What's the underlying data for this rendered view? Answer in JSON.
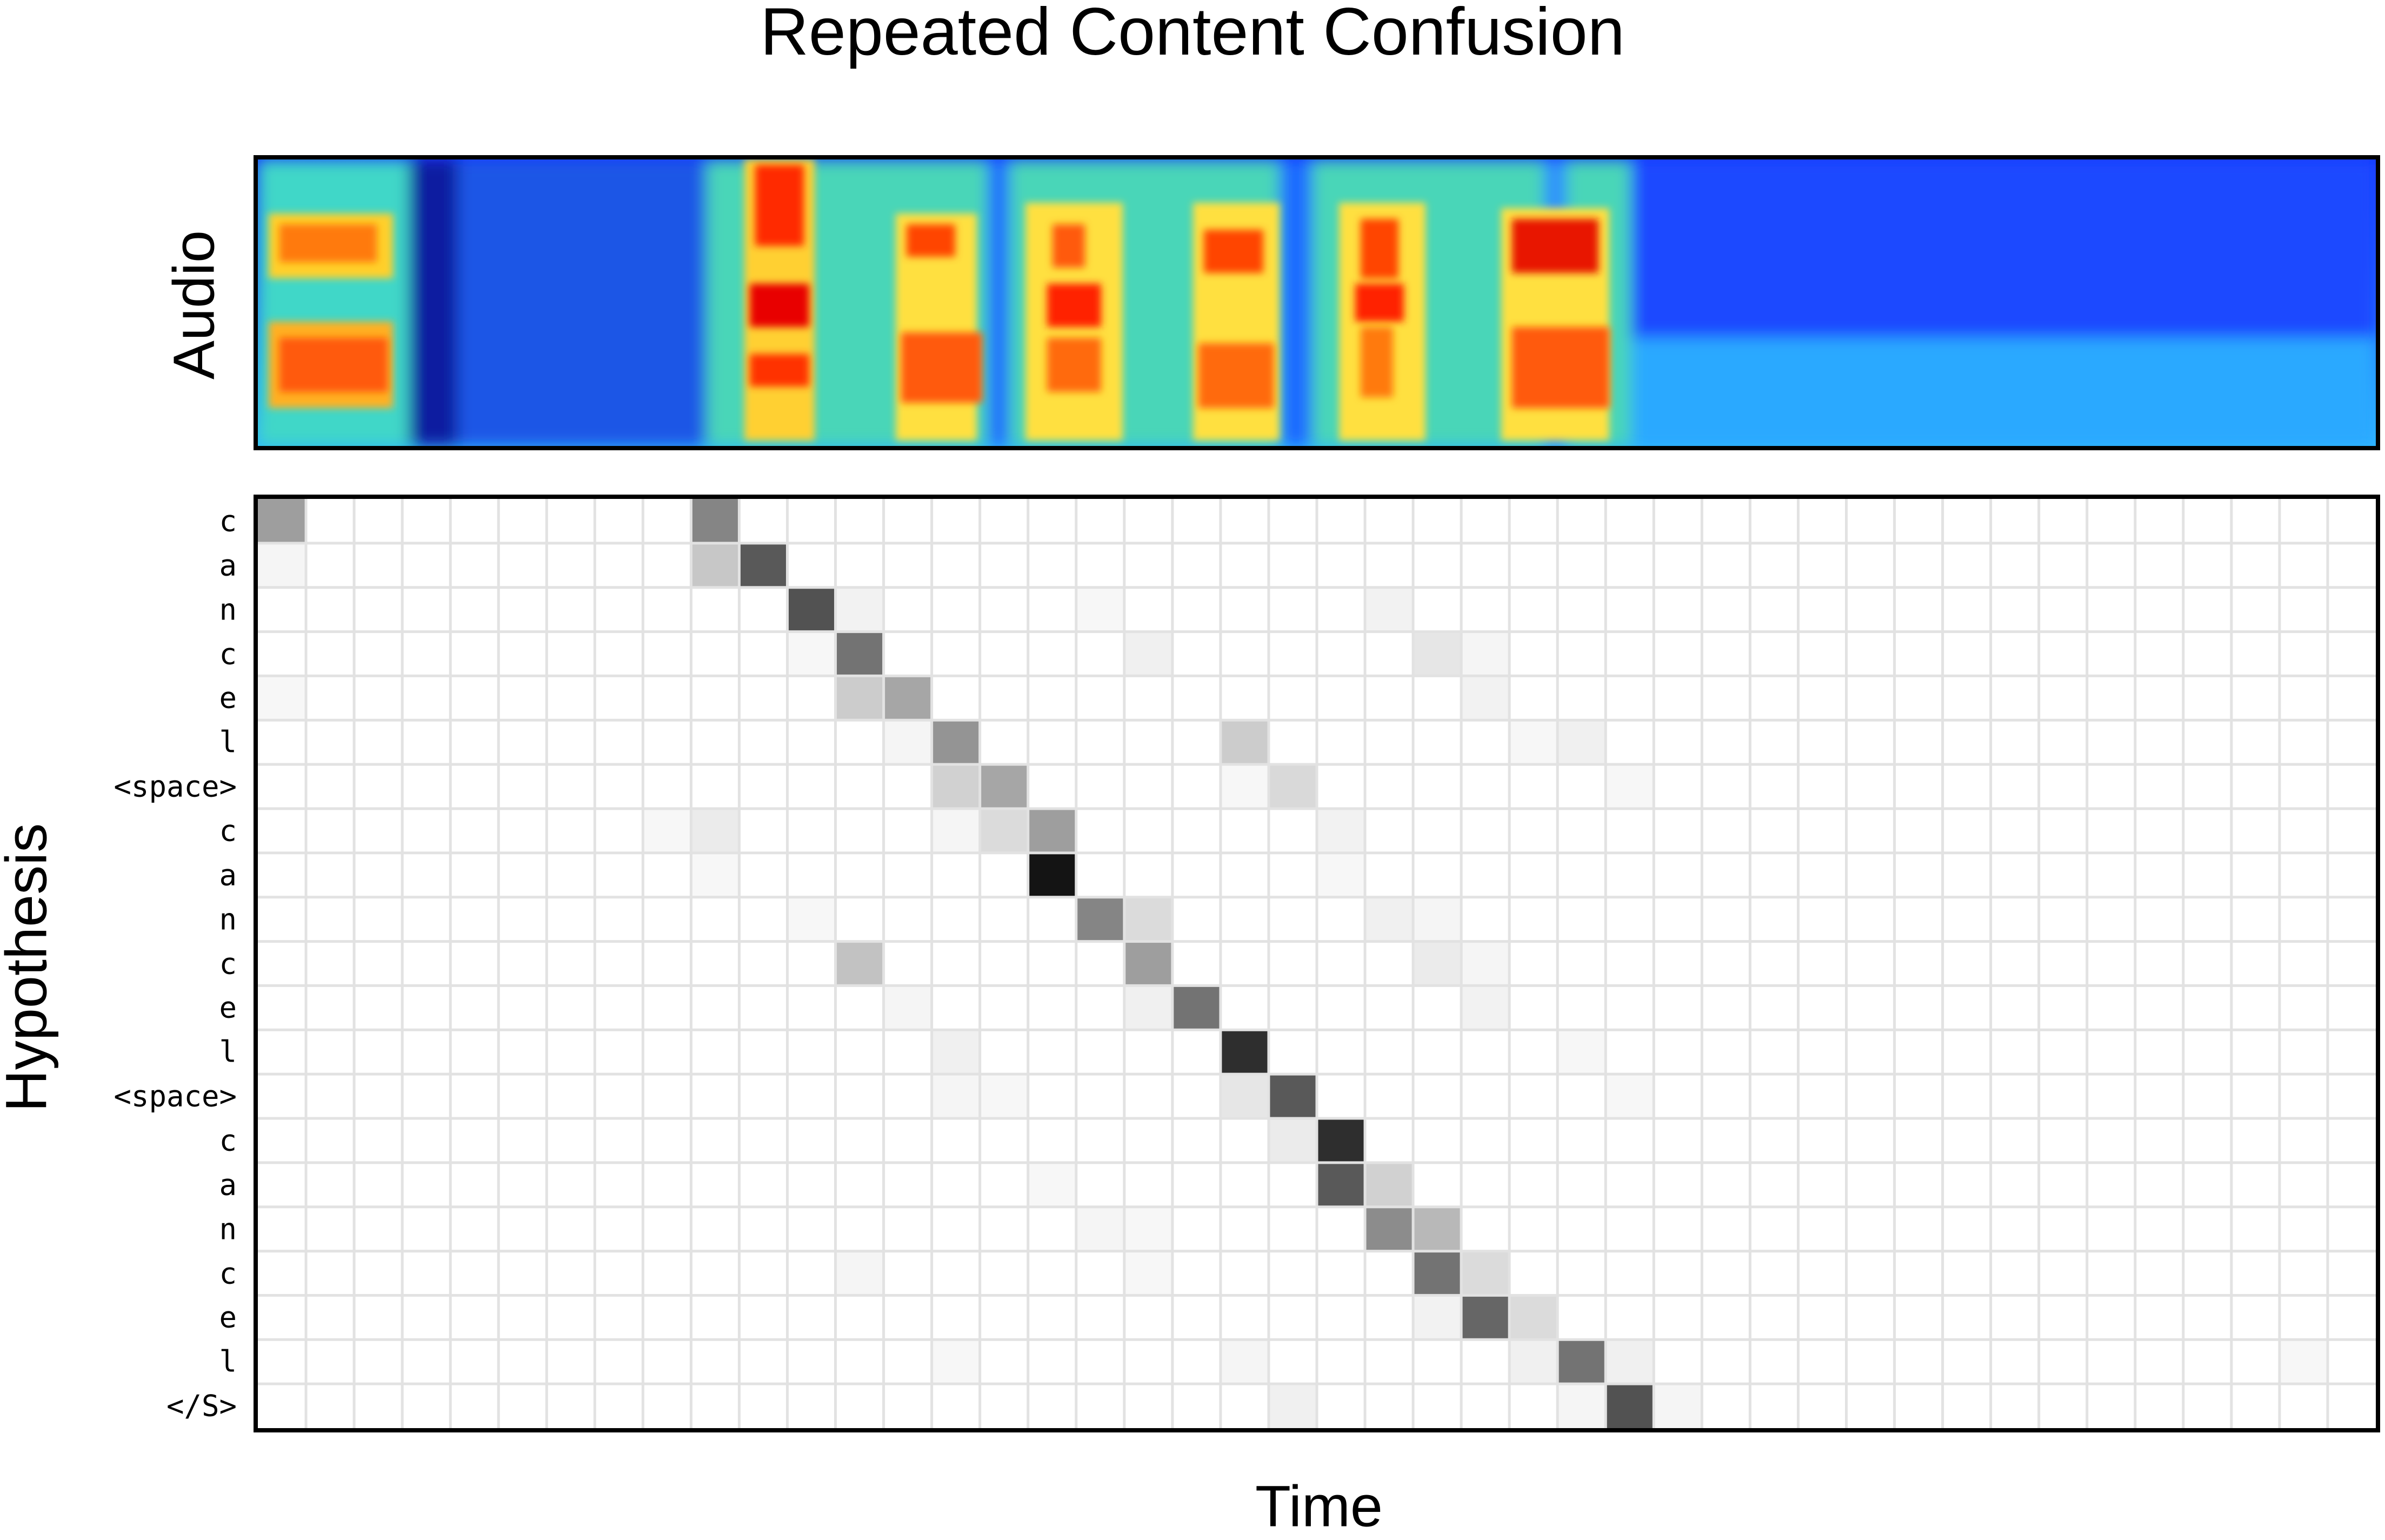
{
  "chart_data": {
    "type": "heatmap",
    "title": "Repeated Content Confusion",
    "xlabel": "Time",
    "ylabel": "Hypothesis",
    "spectrogram_label": "Audio",
    "columns": 44,
    "rows": [
      "c",
      "a",
      "n",
      "c",
      "e",
      "l",
      "<space>",
      "c",
      "a",
      "n",
      "c",
      "e",
      "l",
      "<space>",
      "c",
      "a",
      "n",
      "c",
      "e",
      "l",
      "</S>"
    ],
    "grid": true,
    "colormap": "grayscale",
    "cells": [
      [
        0,
        0,
        0.38
      ],
      [
        0,
        9,
        0.48
      ],
      [
        1,
        0,
        0.04
      ],
      [
        1,
        9,
        0.22
      ],
      [
        1,
        10,
        0.65
      ],
      [
        2,
        11,
        0.68
      ],
      [
        2,
        12,
        0.05
      ],
      [
        2,
        17,
        0.03
      ],
      [
        2,
        23,
        0.05
      ],
      [
        3,
        11,
        0.03
      ],
      [
        3,
        12,
        0.55
      ],
      [
        3,
        18,
        0.06
      ],
      [
        3,
        24,
        0.1
      ],
      [
        3,
        25,
        0.04
      ],
      [
        4,
        0,
        0.03
      ],
      [
        4,
        12,
        0.2
      ],
      [
        4,
        13,
        0.35
      ],
      [
        4,
        25,
        0.05
      ],
      [
        5,
        13,
        0.04
      ],
      [
        5,
        14,
        0.42
      ],
      [
        5,
        20,
        0.2
      ],
      [
        5,
        26,
        0.03
      ],
      [
        5,
        27,
        0.06
      ],
      [
        6,
        14,
        0.18
      ],
      [
        6,
        15,
        0.35
      ],
      [
        6,
        20,
        0.03
      ],
      [
        6,
        21,
        0.15
      ],
      [
        6,
        28,
        0.03
      ],
      [
        7,
        8,
        0.03
      ],
      [
        7,
        9,
        0.08
      ],
      [
        7,
        14,
        0.04
      ],
      [
        7,
        15,
        0.14
      ],
      [
        7,
        16,
        0.38
      ],
      [
        7,
        22,
        0.05
      ],
      [
        8,
        9,
        0.03
      ],
      [
        8,
        16,
        0.92
      ],
      [
        8,
        22,
        0.03
      ],
      [
        9,
        11,
        0.03
      ],
      [
        9,
        17,
        0.48
      ],
      [
        9,
        18,
        0.14
      ],
      [
        9,
        23,
        0.06
      ],
      [
        9,
        24,
        0.04
      ],
      [
        10,
        12,
        0.24
      ],
      [
        10,
        18,
        0.38
      ],
      [
        10,
        24,
        0.08
      ],
      [
        10,
        25,
        0.04
      ],
      [
        11,
        13,
        0.04
      ],
      [
        11,
        18,
        0.06
      ],
      [
        11,
        19,
        0.55
      ],
      [
        11,
        25,
        0.05
      ],
      [
        12,
        14,
        0.06
      ],
      [
        12,
        20,
        0.82
      ],
      [
        12,
        27,
        0.03
      ],
      [
        13,
        14,
        0.04
      ],
      [
        13,
        15,
        0.03
      ],
      [
        13,
        20,
        0.1
      ],
      [
        13,
        21,
        0.65
      ],
      [
        13,
        28,
        0.03
      ],
      [
        14,
        21,
        0.08
      ],
      [
        14,
        22,
        0.82
      ],
      [
        15,
        16,
        0.03
      ],
      [
        15,
        22,
        0.65
      ],
      [
        15,
        23,
        0.18
      ],
      [
        16,
        17,
        0.04
      ],
      [
        16,
        18,
        0.03
      ],
      [
        16,
        23,
        0.45
      ],
      [
        16,
        24,
        0.28
      ],
      [
        17,
        12,
        0.04
      ],
      [
        17,
        18,
        0.03
      ],
      [
        17,
        24,
        0.55
      ],
      [
        17,
        25,
        0.14
      ],
      [
        18,
        24,
        0.05
      ],
      [
        18,
        25,
        0.6
      ],
      [
        18,
        26,
        0.14
      ],
      [
        19,
        14,
        0.03
      ],
      [
        19,
        20,
        0.04
      ],
      [
        19,
        26,
        0.06
      ],
      [
        19,
        27,
        0.55
      ],
      [
        19,
        28,
        0.06
      ],
      [
        19,
        42,
        0.03
      ],
      [
        20,
        21,
        0.06
      ],
      [
        20,
        27,
        0.04
      ],
      [
        20,
        28,
        0.68
      ],
      [
        20,
        29,
        0.04
      ]
    ]
  }
}
